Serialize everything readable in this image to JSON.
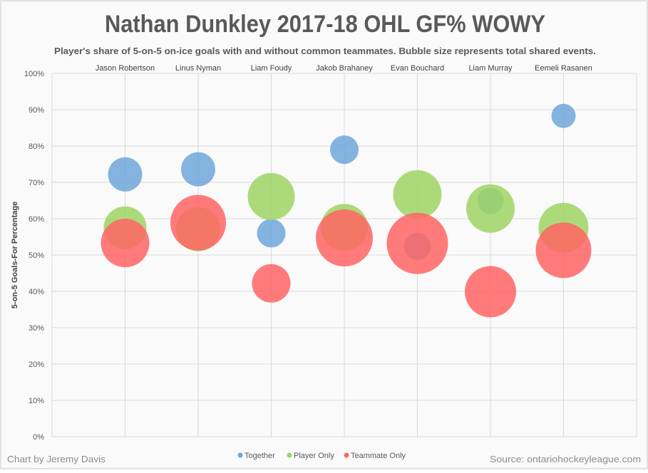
{
  "chart_data": {
    "type": "bubble",
    "title": "Nathan Dunkley 2017-18 OHL GF% WOWY",
    "subtitle": "Player's share of 5-on-5 on-ice goals with and without common teammates. Bubble size represents total shared events.",
    "ylabel": "5-on-5 Goals-For  Percentage",
    "ylim": [
      0,
      100
    ],
    "yticks": [
      "0%",
      "10%",
      "20%",
      "30%",
      "40%",
      "50%",
      "60%",
      "70%",
      "80%",
      "90%",
      "100%"
    ],
    "grid": true,
    "legend_position": "bottom",
    "categories": [
      "Jason Robertson",
      "Linus Nyman",
      "Liam Foudy",
      "Jakob Brahaney",
      "Evan Bouchard",
      "Liam Murray",
      "Eemeli Rasanen"
    ],
    "series": [
      {
        "name": "Together",
        "color": "#6fa6da",
        "values": [
          72.2,
          73.6,
          56.0,
          79.0,
          52.4,
          64.9,
          88.3
        ],
        "sizes": [
          576,
          576,
          400,
          400,
          361,
          342,
          289
        ]
      },
      {
        "name": "Player Only",
        "color": "#9dd463",
        "values": [
          57.5,
          57.1,
          66.1,
          57.6,
          66.7,
          62.8,
          57.5
        ],
        "sizes": [
          900,
          961,
          1089,
          1089,
          1156,
          1156,
          1225
        ]
      },
      {
        "name": "Teammate Only",
        "color": "#ff6464",
        "values": [
          53.3,
          58.9,
          42.2,
          54.7,
          53.2,
          39.9,
          51.3
        ],
        "sizes": [
          1156,
          1521,
          729,
          1600,
          1849,
          1296,
          1521
        ]
      }
    ]
  },
  "footer": {
    "credit": "Chart by Jeremy Davis",
    "source": "Source: ontariohockeyleague.com"
  }
}
